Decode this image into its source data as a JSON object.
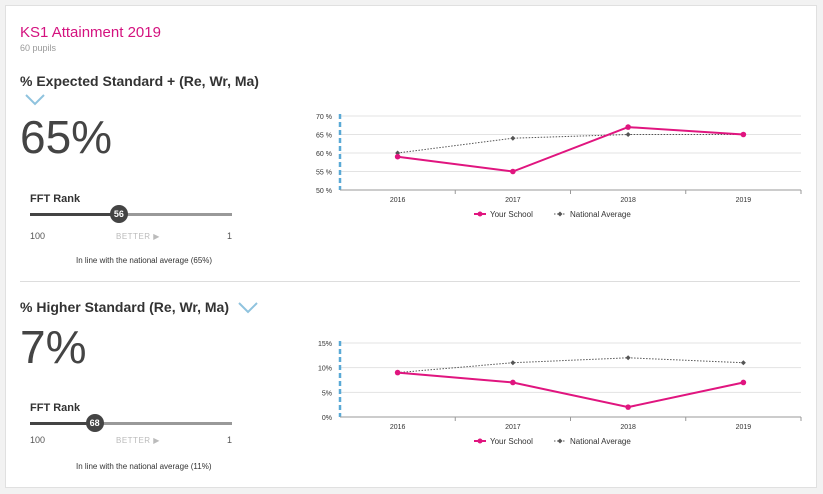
{
  "header": {
    "title": "KS1 Attainment 2019",
    "subtitle": "60 pupils"
  },
  "metrics": [
    {
      "title": "% Expected Standard + (Re, Wr, Ma)",
      "value": "65%",
      "rank": {
        "label": "FFT Rank",
        "value": 56,
        "value_text": "56",
        "min": "100",
        "max": "1",
        "better": "BETTER ▶",
        "fraction": 0.44
      },
      "note": "In line with the national average (65%)"
    },
    {
      "title": "% Higher Standard (Re, Wr, Ma)",
      "value": "7%",
      "rank": {
        "label": "FFT Rank",
        "value": 68,
        "value_text": "68",
        "min": "100",
        "max": "1",
        "better": "BETTER ▶",
        "fraction": 0.32
      },
      "note": "In line with the national average (11%)"
    }
  ],
  "chart_data": [
    {
      "type": "line",
      "x": [
        "2016",
        "2017",
        "2018",
        "2019"
      ],
      "ylim": [
        50,
        70
      ],
      "yticks": [
        50,
        55,
        60,
        65,
        70
      ],
      "ytick_labels": [
        "50 %",
        "55 %",
        "60 %",
        "65 %",
        "70 %"
      ],
      "grid": true,
      "legend": "bottom",
      "series": [
        {
          "name": "Your School",
          "values": [
            59,
            55,
            67,
            65
          ],
          "color": "#e0157f",
          "style": "solid"
        },
        {
          "name": "National Average",
          "values": [
            60,
            64,
            65,
            65
          ],
          "color": "#555555",
          "style": "dotted"
        }
      ]
    },
    {
      "type": "line",
      "x": [
        "2016",
        "2017",
        "2018",
        "2019"
      ],
      "ylim": [
        0,
        15
      ],
      "yticks": [
        0,
        5,
        10,
        15
      ],
      "ytick_labels": [
        "0%",
        "5%",
        "10%",
        "15%"
      ],
      "grid": true,
      "legend": "bottom",
      "series": [
        {
          "name": "Your School",
          "values": [
            9,
            7,
            2,
            7
          ],
          "color": "#e0157f",
          "style": "solid"
        },
        {
          "name": "National Average",
          "values": [
            9,
            11,
            12,
            11
          ],
          "color": "#555555",
          "style": "dotted"
        }
      ]
    }
  ],
  "colors": {
    "accent": "#d4127f",
    "chevron": "#8fc3de",
    "axis_dash": "#5aa9d6"
  }
}
